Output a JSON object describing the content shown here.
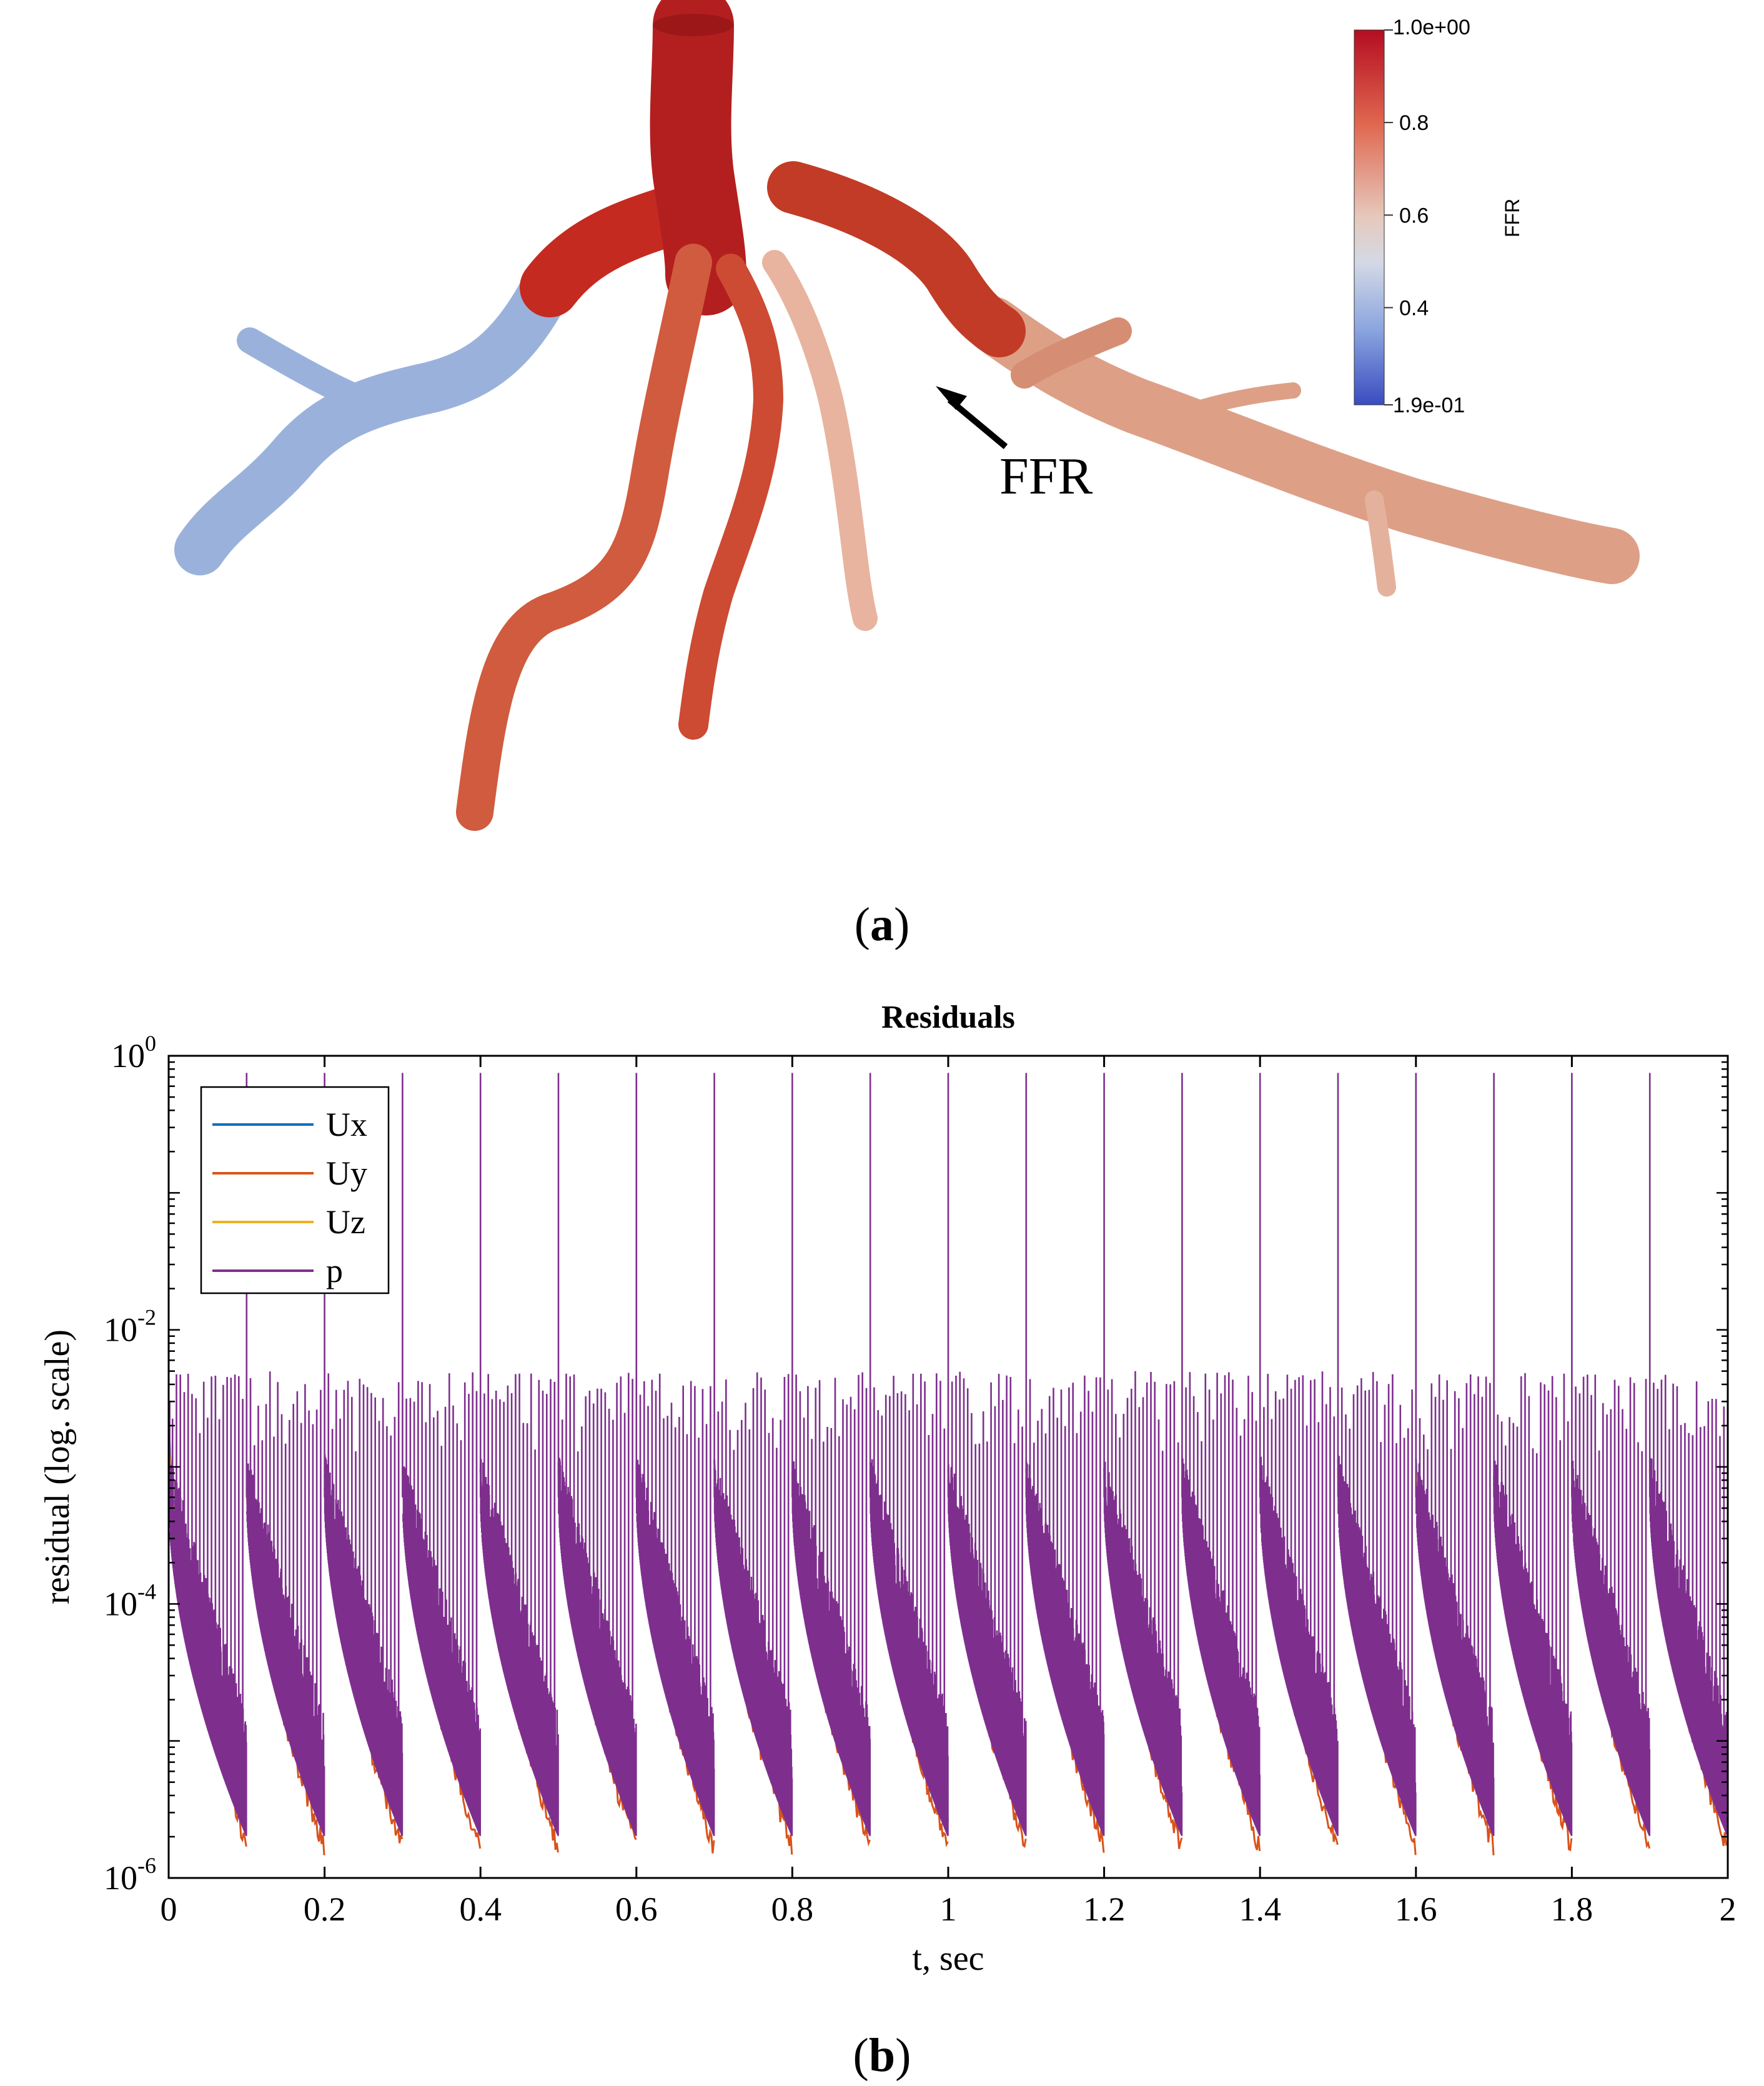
{
  "panel_a": {
    "label": "(a)",
    "annotation": "FFR",
    "colorbar": {
      "title": "FFR",
      "max_label": "1.0e+00",
      "min_label": "1.9e-01",
      "ticks": [
        {
          "value": 0.8,
          "label": "0.8"
        },
        {
          "value": 0.6,
          "label": "0.6"
        },
        {
          "value": 0.4,
          "label": "0.4"
        }
      ],
      "range": [
        0.19,
        1.0
      ],
      "colors": {
        "high": "#b40d22",
        "mid": "#dddddd",
        "low": "#3a4cc0"
      }
    },
    "vessel_colors": {
      "trunk": "#b31f1f",
      "branch_red": "#c8341f",
      "branch_orange": "#d8694a",
      "branch_peach": "#e9b49f",
      "branch_right": "#dda087",
      "branch_blue": "#9ab2db"
    }
  },
  "panel_b": {
    "label": "(b)",
    "chart_data": {
      "type": "line",
      "title": "Residuals",
      "xlabel": "t, sec",
      "ylabel": "residual (log. scale)",
      "xlim": [
        0,
        2
      ],
      "ylim": [
        1e-06,
        1
      ],
      "y_scale": "log",
      "x_ticks": [
        {
          "v": 0,
          "label": "0"
        },
        {
          "v": 0.2,
          "label": "0.2"
        },
        {
          "v": 0.4,
          "label": "0.4"
        },
        {
          "v": 0.6,
          "label": "0.6"
        },
        {
          "v": 0.8,
          "label": "0.8"
        },
        {
          "v": 1,
          "label": "1"
        },
        {
          "v": 1.2,
          "label": "1.2"
        },
        {
          "v": 1.4,
          "label": "1.4"
        },
        {
          "v": 1.6,
          "label": "1.6"
        },
        {
          "v": 1.8,
          "label": "1.8"
        },
        {
          "v": 2,
          "label": "2"
        }
      ],
      "y_ticks": [
        {
          "exp": 0,
          "base": "10",
          "sup": "0"
        },
        {
          "exp": -2,
          "base": "10",
          "sup": "-2"
        },
        {
          "exp": -4,
          "base": "10",
          "sup": "-4"
        },
        {
          "exp": -6,
          "base": "10",
          "sup": "-6"
        }
      ],
      "legend_position": "top-left",
      "grid": false,
      "cycle_period": 0.1,
      "series": [
        {
          "name": "Ux",
          "color": "#0072bd",
          "start": 0.001,
          "end": 3e-06
        },
        {
          "name": "Uy",
          "color": "#d95319",
          "start": 0.001,
          "end": 2e-06
        },
        {
          "name": "Uz",
          "color": "#edb120",
          "start": 0.0008,
          "end": 3e-06
        },
        {
          "name": "p",
          "color": "#7e2f8e",
          "peak": 0.75,
          "band_high": 0.001,
          "band_low": 1e-05,
          "spike_max": 0.005
        }
      ]
    }
  }
}
